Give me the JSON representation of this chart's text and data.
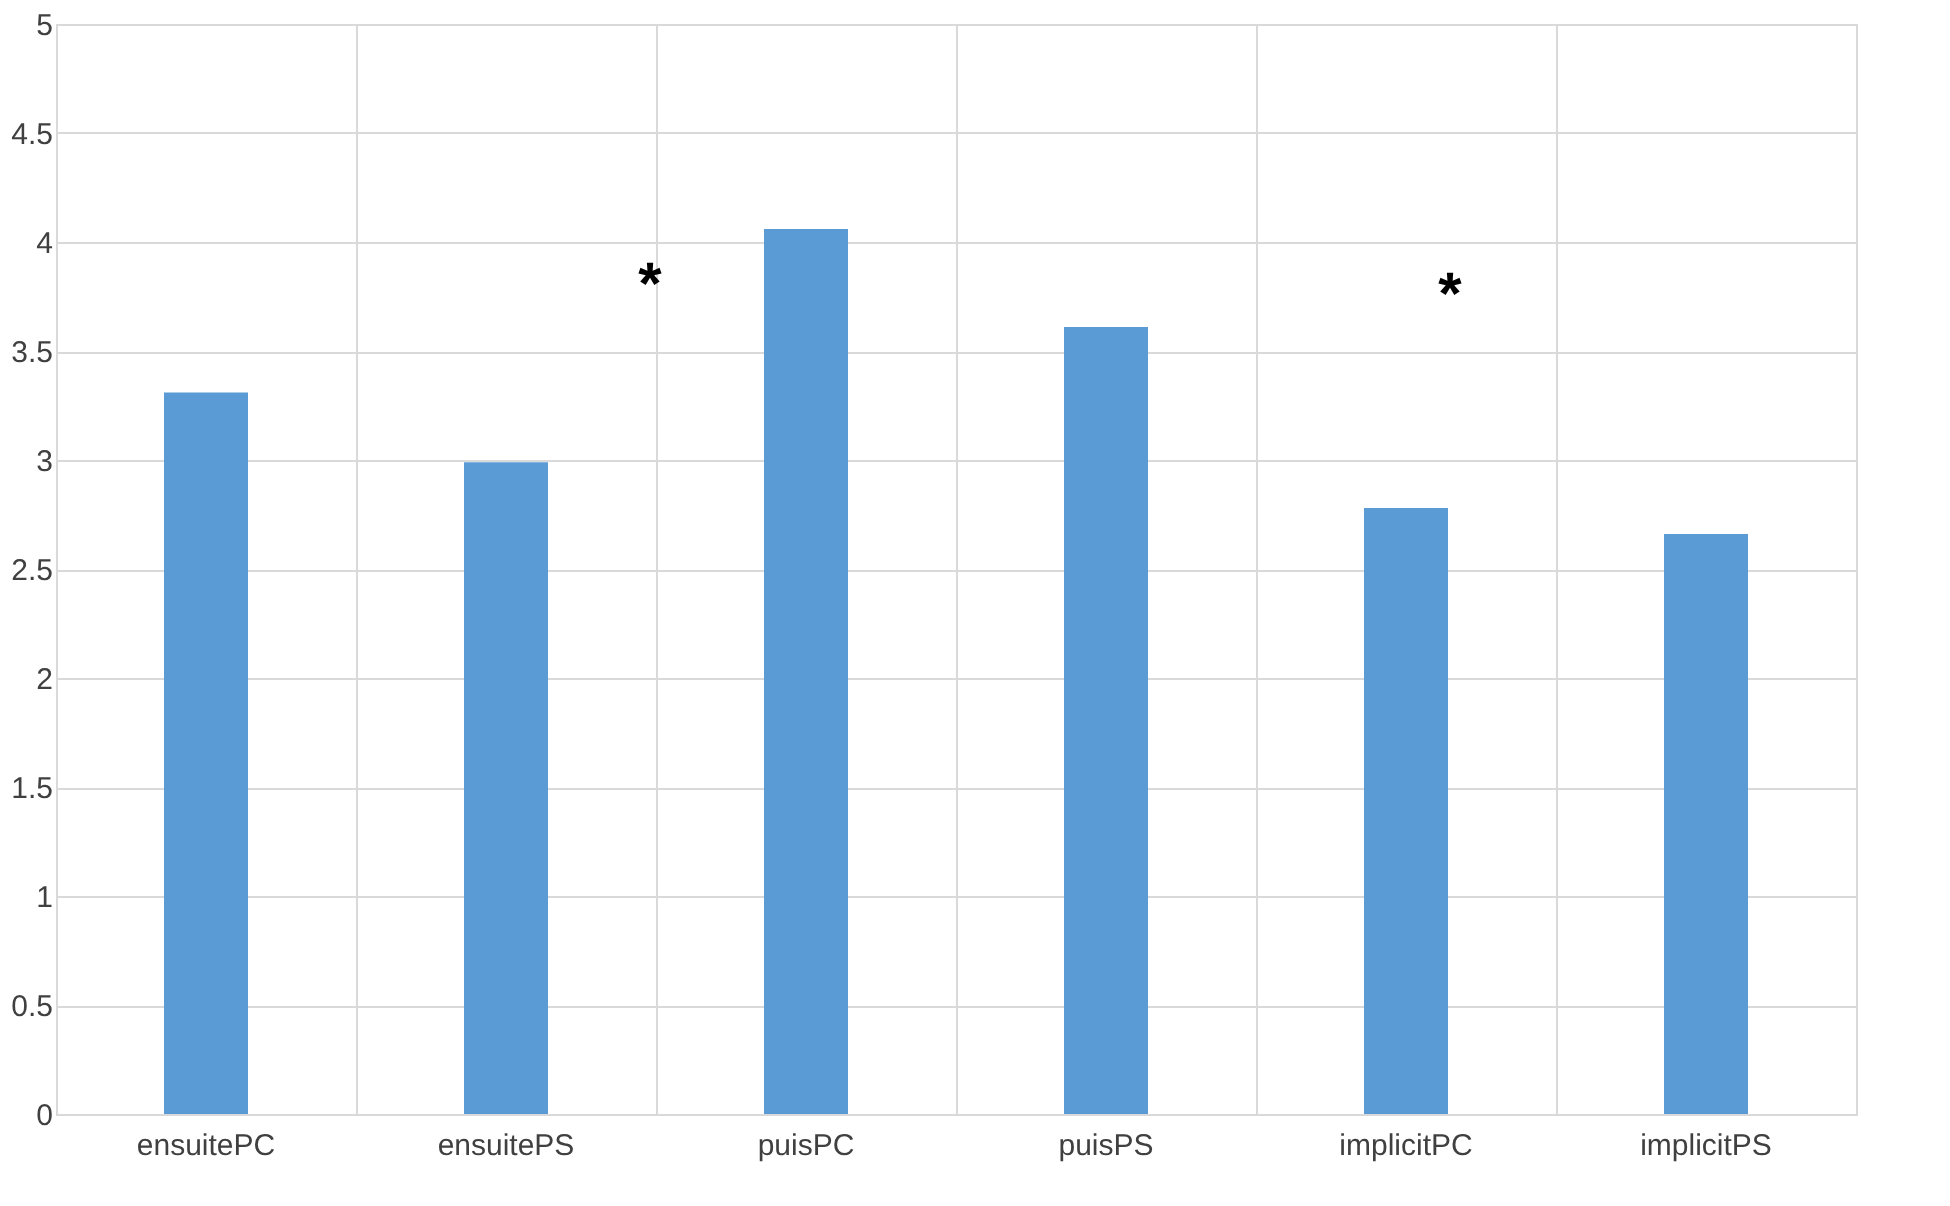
{
  "chart_data": {
    "type": "bar",
    "categories": [
      "ensuitePC",
      "ensuitePS",
      "puisPC",
      "puisPS",
      "implicitPC",
      "implicitPS"
    ],
    "values": [
      3.31,
      2.99,
      4.06,
      3.61,
      2.78,
      2.66
    ],
    "color": "#5b9bd5",
    "ylim": [
      0,
      5
    ],
    "yticks": [
      0,
      0.5,
      1,
      1.5,
      2,
      2.5,
      3,
      3.5,
      4,
      4.5,
      5
    ],
    "grid": true,
    "annotations": [
      "*",
      "*"
    ]
  }
}
